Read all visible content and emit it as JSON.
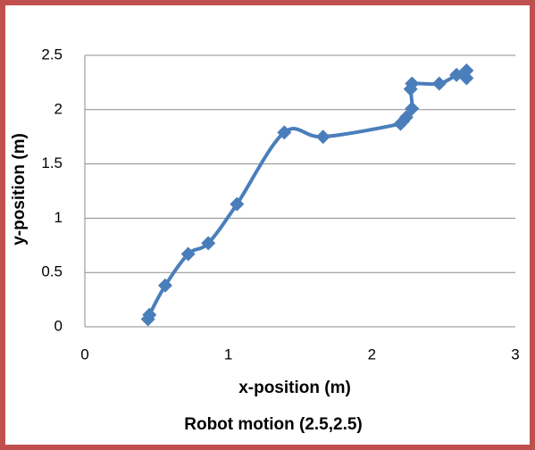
{
  "chart_data": {
    "type": "scatter",
    "title": "Robot motion (2.5,2.5)",
    "xlabel": "x-position (m)",
    "ylabel": "y-position (m)",
    "x": [
      0.44,
      0.45,
      0.56,
      0.72,
      0.86,
      1.06,
      1.39,
      1.66,
      2.2,
      2.24,
      2.28,
      2.27,
      2.28,
      2.47,
      2.59,
      2.66,
      2.66
    ],
    "values": [
      0.07,
      0.11,
      0.38,
      0.67,
      0.77,
      1.13,
      1.79,
      1.75,
      1.87,
      1.93,
      2.01,
      2.19,
      2.24,
      2.24,
      2.32,
      2.36,
      2.29
    ],
    "color": "#4a7ebb",
    "border_color": "#c0504d",
    "xlim": [
      0,
      3
    ],
    "xticks": [
      0,
      1,
      2,
      3
    ],
    "ylim": [
      0,
      2.5
    ],
    "yticks": [
      0,
      0.5,
      1,
      1.5,
      2,
      2.5
    ],
    "grid": true,
    "smooth": true
  }
}
